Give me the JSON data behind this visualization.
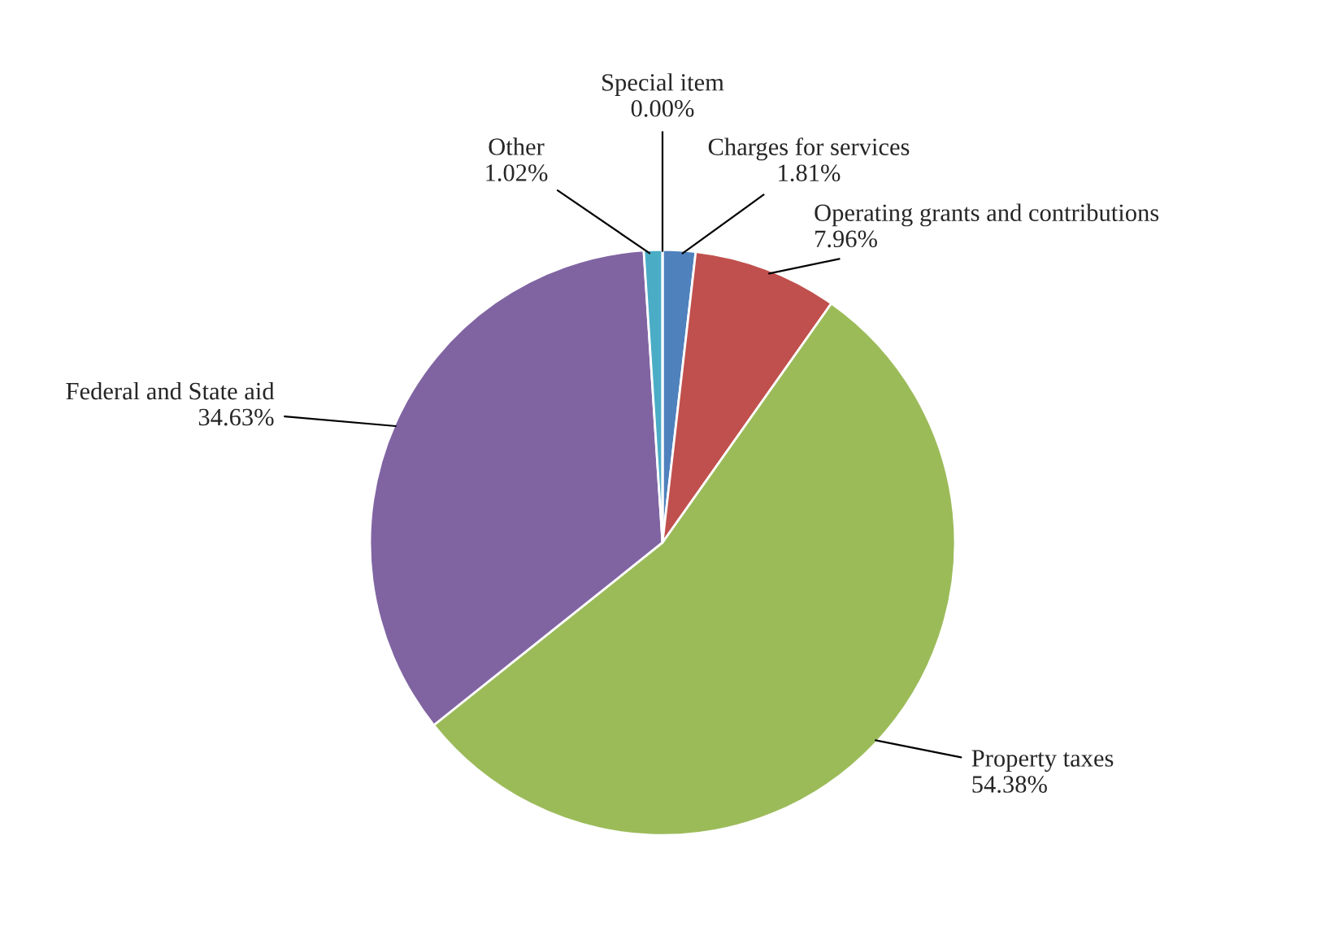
{
  "chart_data": {
    "type": "pie",
    "categories": [
      "Charges for services",
      "Operating grants and contributions",
      "Property taxes",
      "Federal and State aid",
      "Other",
      "Special item"
    ],
    "values": [
      1.81,
      7.96,
      54.38,
      34.63,
      1.02,
      0.0
    ],
    "value_labels": [
      "1.81%",
      "7.96%",
      "54.38%",
      "34.63%",
      "1.02%",
      "0.00%"
    ],
    "colors": [
      "#4f81bd",
      "#c0504d",
      "#9bbb59",
      "#8064a2",
      "#4bacc6",
      "#f79646"
    ]
  }
}
